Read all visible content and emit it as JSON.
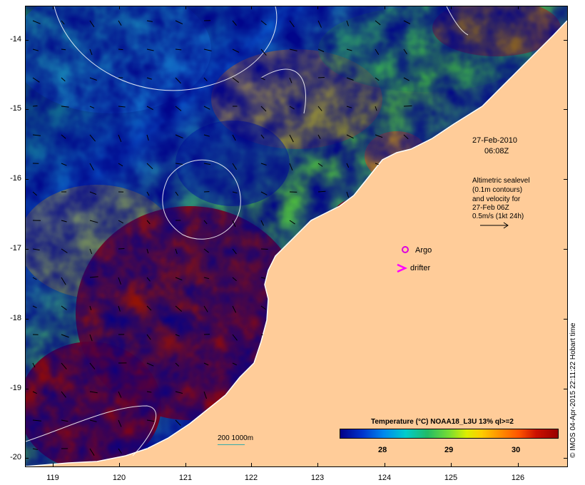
{
  "map": {
    "y_ticks": [
      "-14",
      "-15",
      "-16",
      "-17",
      "-18",
      "-19",
      "-20"
    ],
    "x_ticks": [
      "119",
      "120",
      "121",
      "122",
      "123",
      "124",
      "125",
      "126"
    ],
    "date": "27-Feb-2010",
    "time": "06:08Z",
    "altimetry_note": [
      "Altimetric sealevel",
      "(0.1m contours)",
      "and velocity for",
      "27-Feb 06Z",
      "0.5m/s (1kt 24h)"
    ],
    "legend_argo": "Argo",
    "legend_drifter": "drifter",
    "scale_bar_label": "200  1000m",
    "colorbar_title": "Temperature (°C) NOAA18_L3U 13% ql>=2",
    "colorbar_ticks": [
      "28",
      "29",
      "30"
    ],
    "credit": "© IMOS 04-Apr-2015 22:11:22 Hobart time",
    "colors": {
      "land": "#ffcc99",
      "cold": "#000088",
      "warm": "#990000",
      "argo_marker": "#dd00dd",
      "drifter_marker": "#ff00ff",
      "contour": "#ffffff"
    }
  }
}
